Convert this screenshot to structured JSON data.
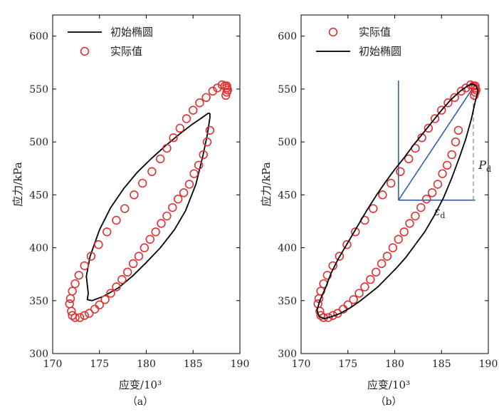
{
  "chart_data": [
    {
      "type": "scatter",
      "caption": "（a）",
      "xlabel": "应变/10³",
      "ylabel": "应力/kPa",
      "xlim": [
        170,
        190
      ],
      "ylim": [
        300,
        620
      ],
      "xticks": [
        170,
        175,
        180,
        185,
        190
      ],
      "yticks": [
        300,
        350,
        400,
        450,
        500,
        550,
        600
      ],
      "legend_position": "top-left",
      "legend": [
        {
          "label": "初始椭圆",
          "kind": "line"
        },
        {
          "label": "实际值",
          "kind": "marker"
        }
      ],
      "series": [
        {
          "name": "初始椭圆",
          "kind": "line",
          "color": "#000000",
          "points": [
            [
              186.8,
              527
            ],
            [
              186.6,
              527
            ],
            [
              185.8,
              522
            ],
            [
              184.8,
              516
            ],
            [
              183.5,
              507
            ],
            [
              182,
              496
            ],
            [
              180.5,
              484
            ],
            [
              179,
              471
            ],
            [
              177.6,
              456
            ],
            [
              176.2,
              438
            ],
            [
              175,
              417
            ],
            [
              174,
              392
            ],
            [
              173.6,
              373
            ],
            [
              173.8,
              357
            ],
            [
              173.7,
              351
            ],
            [
              174.2,
              350
            ],
            [
              175.4,
              354
            ],
            [
              177,
              362
            ],
            [
              178.5,
              373
            ],
            [
              180,
              386
            ],
            [
              181.5,
              400
            ],
            [
              183,
              417
            ],
            [
              184.2,
              435
            ],
            [
              185.3,
              460
            ],
            [
              186,
              485
            ],
            [
              186.5,
              506
            ],
            [
              186.8,
              523
            ],
            [
              186.8,
              527
            ]
          ]
        },
        {
          "name": "实际值",
          "kind": "marker",
          "color": "#e03030",
          "points": [
            [
              171.8,
              347
            ],
            [
              172,
              340
            ],
            [
              172.1,
              336
            ],
            [
              172.4,
              334
            ],
            [
              172.9,
              334
            ],
            [
              173.4,
              336
            ],
            [
              173.9,
              338
            ],
            [
              174.5,
              342
            ],
            [
              175,
              346
            ],
            [
              175.6,
              351
            ],
            [
              176.2,
              357
            ],
            [
              176.8,
              363
            ],
            [
              177.4,
              370
            ],
            [
              178,
              377
            ],
            [
              178.6,
              385
            ],
            [
              179.2,
              392
            ],
            [
              179.8,
              400
            ],
            [
              180.4,
              408
            ],
            [
              181,
              415
            ],
            [
              181.6,
              423
            ],
            [
              182.2,
              430
            ],
            [
              182.8,
              438
            ],
            [
              183.4,
              446
            ],
            [
              184,
              452
            ],
            [
              184.6,
              460
            ],
            [
              185.1,
              470
            ],
            [
              185.6,
              478
            ],
            [
              186.1,
              488
            ],
            [
              186.5,
              500
            ],
            [
              186.8,
              511
            ],
            [
              188.5,
              544
            ],
            [
              188.6,
              547
            ],
            [
              188.7,
              549
            ],
            [
              188.6,
              551
            ],
            [
              188.6,
              553
            ],
            [
              188.4,
              553
            ],
            [
              188.1,
              554
            ],
            [
              187.6,
              551
            ],
            [
              187.1,
              548
            ],
            [
              186.4,
              542
            ],
            [
              185.7,
              537
            ],
            [
              185,
              530
            ],
            [
              184.3,
              522
            ],
            [
              183.6,
              513
            ],
            [
              182.9,
              504
            ],
            [
              182.2,
              494
            ],
            [
              181.5,
              484
            ],
            [
              180.6,
              472
            ],
            [
              179.6,
              461
            ],
            [
              178.7,
              450
            ],
            [
              177.7,
              437
            ],
            [
              176.8,
              426
            ],
            [
              175.8,
              415
            ],
            [
              174.9,
              403
            ],
            [
              174.1,
              392
            ],
            [
              173.4,
              383
            ],
            [
              172.8,
              374
            ],
            [
              172.4,
              366
            ],
            [
              172.1,
              359
            ],
            [
              171.9,
              352
            ]
          ]
        }
      ]
    },
    {
      "type": "scatter",
      "caption": "（b）",
      "xlabel": "应变/10³",
      "ylabel": "应力/kPa",
      "xlim": [
        170,
        190
      ],
      "ylim": [
        300,
        620
      ],
      "xticks": [
        170,
        175,
        180,
        185,
        190
      ],
      "yticks": [
        300,
        350,
        400,
        450,
        500,
        550,
        600
      ],
      "legend_position": "top-left",
      "legend": [
        {
          "label": "实际值",
          "kind": "marker"
        },
        {
          "label": "初始椭圆",
          "kind": "line"
        }
      ],
      "annotations": {
        "pd_label": "P",
        "pd_sub": "d",
        "eps_label": "ε",
        "eps_sub": "d",
        "color": "#3060a8",
        "dash_color": "#7aa0c8",
        "vertical_line": {
          "x": 180.4,
          "y0": 445,
          "y1": 558
        },
        "horizontal_line": {
          "x0": 180.4,
          "x1": 188.6,
          "y": 445
        },
        "diagonal_line": {
          "x0": 180.4,
          "y0": 445,
          "x1": 188.5,
          "y1": 553
        },
        "dashed_line": {
          "x": 188.4,
          "y0": 445,
          "y1": 550
        }
      },
      "series": [
        {
          "name": "实际值",
          "kind": "marker",
          "color": "#e03030",
          "points": [
            [
              171.8,
              347
            ],
            [
              172,
              340
            ],
            [
              172.1,
              336
            ],
            [
              172.4,
              334
            ],
            [
              172.9,
              334
            ],
            [
              173.4,
              336
            ],
            [
              173.9,
              338
            ],
            [
              174.5,
              342
            ],
            [
              175,
              346
            ],
            [
              175.6,
              351
            ],
            [
              176.2,
              357
            ],
            [
              176.8,
              363
            ],
            [
              177.4,
              370
            ],
            [
              178,
              377
            ],
            [
              178.6,
              385
            ],
            [
              179.2,
              392
            ],
            [
              179.8,
              400
            ],
            [
              180.4,
              408
            ],
            [
              181,
              415
            ],
            [
              181.6,
              423
            ],
            [
              182.2,
              430
            ],
            [
              182.8,
              438
            ],
            [
              183.4,
              446
            ],
            [
              184,
              452
            ],
            [
              184.6,
              460
            ],
            [
              185.1,
              470
            ],
            [
              185.6,
              478
            ],
            [
              186.1,
              488
            ],
            [
              186.5,
              500
            ],
            [
              186.8,
              511
            ],
            [
              188.5,
              544
            ],
            [
              188.6,
              547
            ],
            [
              188.7,
              549
            ],
            [
              188.6,
              551
            ],
            [
              188.6,
              553
            ],
            [
              188.4,
              553
            ],
            [
              188.1,
              554
            ],
            [
              187.6,
              551
            ],
            [
              187.1,
              548
            ],
            [
              186.4,
              542
            ],
            [
              185.7,
              537
            ],
            [
              185,
              530
            ],
            [
              184.3,
              522
            ],
            [
              183.6,
              513
            ],
            [
              182.9,
              504
            ],
            [
              182.2,
              494
            ],
            [
              181.5,
              484
            ],
            [
              180.6,
              472
            ],
            [
              179.6,
              461
            ],
            [
              178.7,
              450
            ],
            [
              177.7,
              437
            ],
            [
              176.8,
              426
            ],
            [
              175.8,
              415
            ],
            [
              174.9,
              403
            ],
            [
              174.1,
              392
            ],
            [
              173.4,
              383
            ],
            [
              172.8,
              374
            ],
            [
              172.4,
              366
            ],
            [
              172.1,
              359
            ],
            [
              171.9,
              352
            ]
          ]
        },
        {
          "name": "初始椭圆",
          "kind": "line",
          "color": "#000000",
          "points": [
            [
              188.9,
              548
            ],
            [
              188.7,
              553
            ],
            [
              188.3,
              555
            ],
            [
              187.8,
              553
            ],
            [
              187,
              548
            ],
            [
              186,
              540
            ],
            [
              185,
              530
            ],
            [
              184,
              519
            ],
            [
              183,
              508
            ],
            [
              182,
              497
            ],
            [
              181,
              485
            ],
            [
              180,
              474
            ],
            [
              179,
              462
            ],
            [
              178,
              449
            ],
            [
              177,
              435
            ],
            [
              176,
              420
            ],
            [
              175,
              405
            ],
            [
              174,
              390
            ],
            [
              173.2,
              376
            ],
            [
              172.6,
              362
            ],
            [
              172,
              350
            ],
            [
              171.7,
              341
            ],
            [
              171.9,
              335
            ],
            [
              172.5,
              333
            ],
            [
              173.3,
              335
            ],
            [
              174.2,
              338
            ],
            [
              175.2,
              343
            ],
            [
              176.2,
              349
            ],
            [
              177.2,
              356
            ],
            [
              178.2,
              363
            ],
            [
              179.2,
              372
            ],
            [
              180.2,
              381
            ],
            [
              181.2,
              391
            ],
            [
              182.2,
              403
            ],
            [
              183.2,
              415
            ],
            [
              184.2,
              430
            ],
            [
              185.2,
              447
            ],
            [
              186.1,
              466
            ],
            [
              186.9,
              485
            ],
            [
              187.6,
              503
            ],
            [
              188.2,
              522
            ],
            [
              188.6,
              538
            ],
            [
              188.9,
              548
            ]
          ]
        }
      ]
    }
  ]
}
